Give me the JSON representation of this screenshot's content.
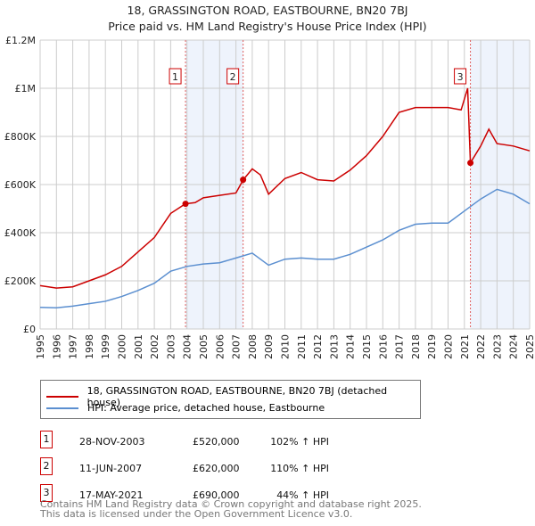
{
  "chart_data": {
    "type": "line",
    "title": "18, GRASSINGTON ROAD, EASTBOURNE, BN20 7BJ",
    "subtitle": "Price paid vs. HM Land Registry's House Price Index (HPI)",
    "xlim": [
      1995,
      2025
    ],
    "ylim": [
      0,
      1200000
    ],
    "x_ticks": [
      "1995",
      "1996",
      "1997",
      "1998",
      "1999",
      "2000",
      "2001",
      "2002",
      "2003",
      "2004",
      "2005",
      "2006",
      "2007",
      "2008",
      "2009",
      "2010",
      "2011",
      "2012",
      "2013",
      "2014",
      "2015",
      "2016",
      "2017",
      "2018",
      "2019",
      "2020",
      "2021",
      "2022",
      "2023",
      "2024",
      "2025"
    ],
    "y_ticks": [
      {
        "v": 0,
        "label": "£0"
      },
      {
        "v": 200000,
        "label": "£200K"
      },
      {
        "v": 400000,
        "label": "£400K"
      },
      {
        "v": 600000,
        "label": "£600K"
      },
      {
        "v": 800000,
        "label": "£800K"
      },
      {
        "v": 1000000,
        "label": "£1M"
      },
      {
        "v": 1200000,
        "label": "£1.2M"
      }
    ],
    "grid": true,
    "series": [
      {
        "name": "18, GRASSINGTON ROAD, EASTBOURNE, BN20 7BJ (detached house)",
        "color": "#cc0000",
        "x": [
          1995,
          1996,
          1997,
          1998,
          1999,
          2000,
          2001,
          2002,
          2003,
          2003.9,
          2004.5,
          2005,
          2006,
          2007,
          2007.45,
          2008,
          2008.5,
          2009,
          2010,
          2011,
          2012,
          2013,
          2014,
          2015,
          2016,
          2017,
          2018,
          2019,
          2020,
          2020.8,
          2021.2,
          2021.37,
          2022,
          2022.5,
          2023,
          2024,
          2025
        ],
        "y": [
          180000,
          170000,
          175000,
          200000,
          225000,
          260000,
          320000,
          380000,
          480000,
          520000,
          525000,
          545000,
          555000,
          565000,
          620000,
          665000,
          640000,
          560000,
          625000,
          650000,
          620000,
          615000,
          660000,
          720000,
          800000,
          900000,
          920000,
          920000,
          920000,
          910000,
          1000000,
          690000,
          760000,
          830000,
          770000,
          760000,
          740000
        ]
      },
      {
        "name": "HPI: Average price, detached house, Eastbourne",
        "color": "#5b8fd0",
        "x": [
          1995,
          1996,
          1997,
          1998,
          1999,
          2000,
          2001,
          2002,
          2003,
          2004,
          2005,
          2006,
          2007,
          2008,
          2009,
          2010,
          2011,
          2012,
          2013,
          2014,
          2015,
          2016,
          2017,
          2018,
          2019,
          2020,
          2021,
          2022,
          2023,
          2024,
          2025
        ],
        "y": [
          90000,
          88000,
          95000,
          105000,
          115000,
          135000,
          160000,
          190000,
          240000,
          260000,
          270000,
          275000,
          295000,
          315000,
          265000,
          290000,
          295000,
          290000,
          290000,
          310000,
          340000,
          370000,
          410000,
          435000,
          440000,
          440000,
          490000,
          540000,
          580000,
          560000,
          520000
        ]
      }
    ],
    "shaded": [
      [
        2003.91,
        2007.44
      ],
      [
        2021.37,
        2025
      ]
    ],
    "sales": [
      {
        "n": "1",
        "x": 2003.91,
        "y": 520000,
        "date": "28-NOV-2003",
        "price": "£520,000",
        "hpi": "102% ↑ HPI"
      },
      {
        "n": "2",
        "x": 2007.44,
        "y": 620000,
        "date": "11-JUN-2007",
        "price": "£620,000",
        "hpi": "110% ↑ HPI"
      },
      {
        "n": "3",
        "x": 2021.37,
        "y": 690000,
        "date": "17-MAY-2021",
        "price": "£690,000",
        "hpi": "44% ↑ HPI"
      }
    ]
  },
  "footer": {
    "line1": "Contains HM Land Registry data © Crown copyright and database right 2025.",
    "line2": "This data is licensed under the Open Government Licence v3.0."
  }
}
